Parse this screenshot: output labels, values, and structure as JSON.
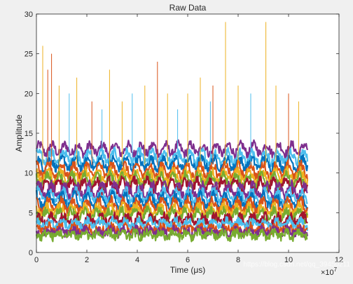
{
  "chart_data": {
    "type": "line",
    "title": "Raw Data",
    "xlabel": "Time (μs)",
    "ylabel": "Amplitude",
    "xlim": [
      0,
      12
    ],
    "ylim": [
      0,
      30
    ],
    "x_multiplier_label": "×10",
    "x_multiplier_exponent": "7",
    "x_ticks": [
      {
        "value": 0,
        "label": "0"
      },
      {
        "value": 2,
        "label": "2"
      },
      {
        "value": 4,
        "label": "4"
      },
      {
        "value": 6,
        "label": "6"
      },
      {
        "value": 8,
        "label": "8"
      },
      {
        "value": 10,
        "label": "10"
      },
      {
        "value": 12,
        "label": "12"
      }
    ],
    "y_ticks": [
      {
        "value": 0,
        "label": "0"
      },
      {
        "value": 5,
        "label": "5"
      },
      {
        "value": 10,
        "label": "10"
      },
      {
        "value": 15,
        "label": "15"
      },
      {
        "value": 20,
        "label": "20"
      },
      {
        "value": 25,
        "label": "25"
      },
      {
        "value": 30,
        "label": "30"
      }
    ],
    "grid": false,
    "legend": "none",
    "x_data_end": 10.75,
    "oscillation_period": 0.5,
    "series": [
      {
        "color": "#7E2F8E",
        "baseline": 13.0,
        "amplitude": 0.6,
        "phase": 0.0
      },
      {
        "color": "#4DBEEE",
        "baseline": 12.0,
        "amplitude": 0.7,
        "phase": 0.5
      },
      {
        "color": "#0072BD",
        "baseline": 11.2,
        "amplitude": 0.6,
        "phase": 1.0
      },
      {
        "color": "#D95319",
        "baseline": 10.3,
        "amplitude": 0.8,
        "phase": 1.6
      },
      {
        "color": "#EDB120",
        "baseline": 9.6,
        "amplitude": 0.7,
        "phase": 2.1
      },
      {
        "color": "#77AC30",
        "baseline": 9.0,
        "amplitude": 0.8,
        "phase": 2.6
      },
      {
        "color": "#A2142F",
        "baseline": 8.4,
        "amplitude": 0.7,
        "phase": 3.0
      },
      {
        "color": "#7E2F8E",
        "baseline": 7.8,
        "amplitude": 0.8,
        "phase": 0.3
      },
      {
        "color": "#4DBEEE",
        "baseline": 7.1,
        "amplitude": 0.7,
        "phase": 0.9
      },
      {
        "color": "#0072BD",
        "baseline": 6.5,
        "amplitude": 0.8,
        "phase": 1.4
      },
      {
        "color": "#D95319",
        "baseline": 5.9,
        "amplitude": 0.7,
        "phase": 1.9
      },
      {
        "color": "#EDB120",
        "baseline": 5.3,
        "amplitude": 0.6,
        "phase": 2.4
      },
      {
        "color": "#77AC30",
        "baseline": 4.7,
        "amplitude": 0.6,
        "phase": 2.9
      },
      {
        "color": "#A2142F",
        "baseline": 4.1,
        "amplitude": 0.5,
        "phase": 0.6
      },
      {
        "color": "#4DBEEE",
        "baseline": 3.6,
        "amplitude": 0.4,
        "phase": 1.2
      },
      {
        "color": "#D95319",
        "baseline": 3.0,
        "amplitude": 0.3,
        "phase": 1.8
      },
      {
        "color": "#7E2F8E",
        "baseline": 2.6,
        "amplitude": 0.3,
        "phase": 2.2
      },
      {
        "color": "#77AC30",
        "baseline": 2.2,
        "amplitude": 0.3,
        "phase": 2.7
      }
    ],
    "spikes": [
      {
        "x": 0.25,
        "y": 26,
        "color": "#EDB120"
      },
      {
        "x": 0.6,
        "y": 25,
        "color": "#D95319"
      },
      {
        "x": 0.9,
        "y": 21,
        "color": "#EDB120"
      },
      {
        "x": 1.3,
        "y": 20,
        "color": "#4DBEEE"
      },
      {
        "x": 1.6,
        "y": 22,
        "color": "#EDB120"
      },
      {
        "x": 2.2,
        "y": 19,
        "color": "#D95319"
      },
      {
        "x": 2.9,
        "y": 23,
        "color": "#EDB120"
      },
      {
        "x": 3.4,
        "y": 19,
        "color": "#EDB120"
      },
      {
        "x": 3.8,
        "y": 20,
        "color": "#4DBEEE"
      },
      {
        "x": 4.3,
        "y": 21,
        "color": "#EDB120"
      },
      {
        "x": 4.8,
        "y": 24,
        "color": "#D95319"
      },
      {
        "x": 5.2,
        "y": 20,
        "color": "#EDB120"
      },
      {
        "x": 5.6,
        "y": 18,
        "color": "#4DBEEE"
      },
      {
        "x": 6.0,
        "y": 20,
        "color": "#EDB120"
      },
      {
        "x": 6.5,
        "y": 22,
        "color": "#EDB120"
      },
      {
        "x": 7.0,
        "y": 21,
        "color": "#D95319"
      },
      {
        "x": 7.5,
        "y": 29,
        "color": "#EDB120"
      },
      {
        "x": 8.0,
        "y": 21,
        "color": "#EDB120"
      },
      {
        "x": 8.5,
        "y": 20,
        "color": "#4DBEEE"
      },
      {
        "x": 9.1,
        "y": 29,
        "color": "#EDB120"
      },
      {
        "x": 9.5,
        "y": 21,
        "color": "#EDB120"
      },
      {
        "x": 10.0,
        "y": 20,
        "color": "#D95319"
      },
      {
        "x": 10.4,
        "y": 19,
        "color": "#EDB120"
      },
      {
        "x": 0.45,
        "y": 23,
        "color": "#D95319"
      },
      {
        "x": 2.6,
        "y": 18,
        "color": "#4DBEEE"
      },
      {
        "x": 6.9,
        "y": 19,
        "color": "#4DBEEE"
      }
    ]
  },
  "watermark": "https://blog.csdn.net/qq_39450211"
}
